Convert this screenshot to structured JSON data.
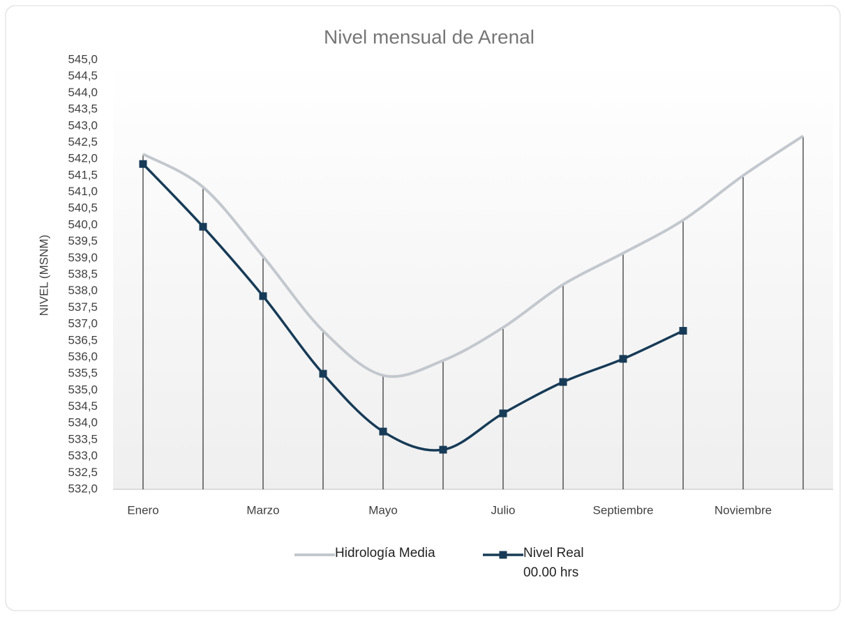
{
  "chart_data": {
    "type": "line",
    "title": "Nivel mensual de Arenal",
    "y_label": "NIVEL (MSNM)",
    "categories": [
      "Enero",
      null,
      "Marzo",
      null,
      "Mayo",
      null,
      "Julio",
      null,
      "Septiembre",
      null,
      "Noviembre",
      null
    ],
    "series": [
      {
        "name": "Hidrología Media",
        "color": "#c3c8ce",
        "values": [
          542.15,
          541.15,
          539.05,
          536.8,
          535.45,
          535.9,
          536.9,
          538.2,
          539.15,
          540.15,
          541.5,
          542.7
        ]
      },
      {
        "name": "Nivel Real\n00.00 hrs",
        "color": "#173b57",
        "values": [
          541.85,
          539.95,
          537.85,
          535.5,
          533.75,
          533.2,
          534.3,
          535.25,
          535.95,
          536.8,
          null,
          null
        ]
      }
    ],
    "ylim": [
      532,
      545
    ],
    "yticks": [
      {
        "value": 532,
        "label": "532,0"
      },
      {
        "value": 532.5,
        "label": "532,5"
      },
      {
        "value": 533,
        "label": "533,0"
      },
      {
        "value": 533.5,
        "label": "533,5"
      },
      {
        "value": 534,
        "label": "534,0"
      },
      {
        "value": 534.5,
        "label": "534,5"
      },
      {
        "value": 535,
        "label": "535,0"
      },
      {
        "value": 535.5,
        "label": "535,5"
      },
      {
        "value": 536,
        "label": "536,0"
      },
      {
        "value": 536.5,
        "label": "536,5"
      },
      {
        "value": 537,
        "label": "537,0"
      },
      {
        "value": 537.5,
        "label": "537,5"
      },
      {
        "value": 538,
        "label": "538,0"
      },
      {
        "value": 538.5,
        "label": "538,5"
      },
      {
        "value": 539,
        "label": "539,0"
      },
      {
        "value": 539.5,
        "label": "539,5"
      },
      {
        "value": 540,
        "label": "540,0"
      },
      {
        "value": 540.5,
        "label": "540,5"
      },
      {
        "value": 541,
        "label": "541,0"
      },
      {
        "value": 541.5,
        "label": "541,5"
      },
      {
        "value": 542,
        "label": "542,0"
      },
      {
        "value": 542.5,
        "label": "542,5"
      },
      {
        "value": 543,
        "label": "543,0"
      },
      {
        "value": 543.5,
        "label": "543,5"
      },
      {
        "value": 544,
        "label": "544,0"
      },
      {
        "value": 544.5,
        "label": "544,5"
      },
      {
        "value": 545,
        "label": "545,0"
      }
    ],
    "drop_lines": true,
    "legend": "bottom"
  }
}
